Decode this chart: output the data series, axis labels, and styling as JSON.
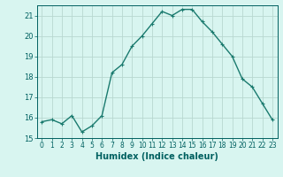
{
  "x": [
    0,
    1,
    2,
    3,
    4,
    5,
    6,
    7,
    8,
    9,
    10,
    11,
    12,
    13,
    14,
    15,
    16,
    17,
    18,
    19,
    20,
    21,
    22,
    23
  ],
  "y": [
    15.8,
    15.9,
    15.7,
    16.1,
    15.3,
    15.6,
    16.1,
    18.2,
    18.6,
    19.5,
    20.0,
    20.6,
    21.2,
    21.0,
    21.3,
    21.3,
    20.7,
    20.2,
    19.6,
    19.0,
    17.9,
    17.5,
    16.7,
    15.9
  ],
  "line_color": "#1a7a6e",
  "marker": "+",
  "marker_size": 3,
  "line_width": 1.0,
  "xlabel": "Humidex (Indice chaleur)",
  "xlabel_color": "#006060",
  "xlabel_fontsize": 7,
  "bg_color": "#d8f5f0",
  "grid_color": "#b8d8d0",
  "tick_color": "#006060",
  "ylim": [
    15,
    21.5
  ],
  "xlim": [
    -0.5,
    23.5
  ],
  "yticks": [
    15,
    16,
    17,
    18,
    19,
    20,
    21
  ],
  "xticks": [
    0,
    1,
    2,
    3,
    4,
    5,
    6,
    7,
    8,
    9,
    10,
    11,
    12,
    13,
    14,
    15,
    16,
    17,
    18,
    19,
    20,
    21,
    22,
    23
  ],
  "tick_fontsize": 5.5
}
